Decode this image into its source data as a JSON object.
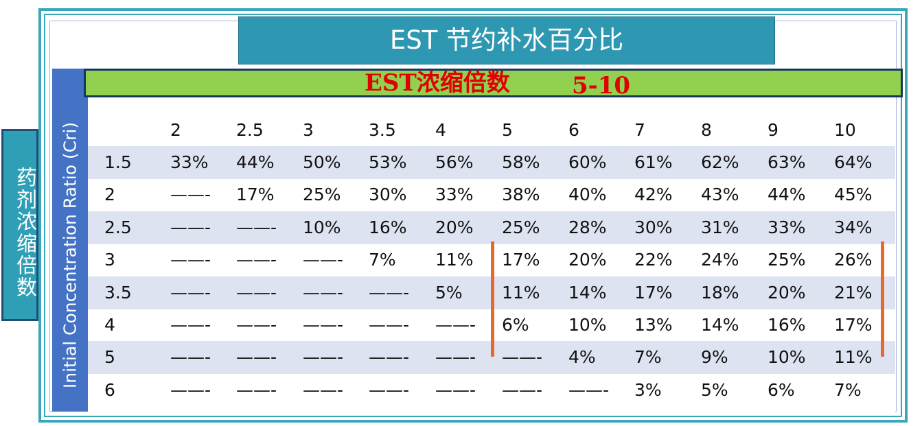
{
  "title": "EST 节约补水百分比",
  "left_label": "药剂浓缩倍数",
  "banner": {
    "label": "EST浓缩倍数",
    "range": "5-10"
  },
  "axis_label": "Initial Concentration Ratio (Cri)",
  "colors": {
    "title_bg": "#2e97b1",
    "banner_bg": "#92d050",
    "banner_text": "#e00000",
    "axis_bg": "#4472c4",
    "row_shade": "#dde3f1",
    "highlight_line": "#e86a2a"
  },
  "table": {
    "columns": [
      "2",
      "2.5",
      "3",
      "3.5",
      "4",
      "5",
      "6",
      "7",
      "8",
      "9",
      "10"
    ],
    "rows": [
      {
        "label": "1.5",
        "values": [
          "33%",
          "44%",
          "50%",
          "53%",
          "56%",
          "58%",
          "60%",
          "61%",
          "62%",
          "63%",
          "64%"
        ]
      },
      {
        "label": "2",
        "values": [
          "——-",
          "17%",
          "25%",
          "30%",
          "33%",
          "38%",
          "40%",
          "42%",
          "43%",
          "44%",
          "45%"
        ]
      },
      {
        "label": "2.5",
        "values": [
          "——-",
          "——-",
          "10%",
          "16%",
          "20%",
          "25%",
          "28%",
          "30%",
          "31%",
          "33%",
          "34%"
        ]
      },
      {
        "label": "3",
        "values": [
          "——-",
          "——-",
          "——-",
          "7%",
          "11%",
          "17%",
          "20%",
          "22%",
          "24%",
          "25%",
          "26%"
        ]
      },
      {
        "label": "3.5",
        "values": [
          "——-",
          "——-",
          "——-",
          "——-",
          "5%",
          "11%",
          "14%",
          "17%",
          "18%",
          "20%",
          "21%"
        ]
      },
      {
        "label": "4",
        "values": [
          "——-",
          "——-",
          "——-",
          "——-",
          "——-",
          "6%",
          "10%",
          "13%",
          "14%",
          "16%",
          "17%"
        ]
      },
      {
        "label": "5",
        "values": [
          "——-",
          "——-",
          "——-",
          "——-",
          "——-",
          "——-",
          "4%",
          "7%",
          "9%",
          "10%",
          "11%"
        ]
      },
      {
        "label": "6",
        "values": [
          "——-",
          "——-",
          "——-",
          "——-",
          "——-",
          "——-",
          "——-",
          "3%",
          "5%",
          "6%",
          "7%"
        ]
      }
    ]
  }
}
